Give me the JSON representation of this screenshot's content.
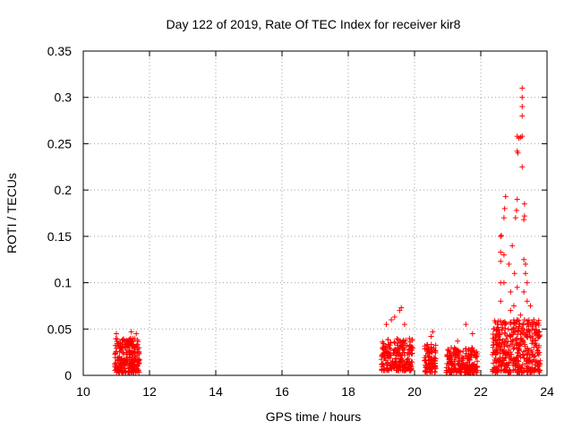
{
  "chart_data": {
    "type": "scatter",
    "title": "Day 122 of 2019, Rate Of TEC Index for receiver kir8",
    "xlabel": "GPS time / hours",
    "ylabel": "ROTI / TECUs",
    "xlim": [
      10,
      24
    ],
    "ylim": [
      0,
      0.35
    ],
    "grid": true,
    "marker": "+",
    "color": "#ff0000",
    "x_tick_labels": [
      "10",
      "12",
      "14",
      "16",
      "18",
      "20",
      "22",
      "24"
    ],
    "y_tick_labels": [
      "0",
      "0.05",
      "0.1",
      "0.15",
      "0.2",
      "0.25",
      "0.3",
      "0.35"
    ],
    "clusters": [
      {
        "x_range": [
          10.95,
          11.7
        ],
        "y_range": [
          0.003,
          0.04
        ],
        "count": 260
      },
      {
        "x_range": [
          19.0,
          19.95
        ],
        "y_range": [
          0.005,
          0.04
        ],
        "count": 230
      },
      {
        "x_range": [
          20.3,
          20.65
        ],
        "y_range": [
          0.003,
          0.035
        ],
        "count": 90
      },
      {
        "x_range": [
          20.95,
          21.9
        ],
        "y_range": [
          0.003,
          0.03
        ],
        "count": 220
      },
      {
        "x_range": [
          22.35,
          23.8
        ],
        "y_range": [
          0.003,
          0.06
        ],
        "count": 420
      }
    ],
    "notable_points": [
      {
        "x": 11.0,
        "y": 0.045
      },
      {
        "x": 11.45,
        "y": 0.047
      },
      {
        "x": 11.6,
        "y": 0.045
      },
      {
        "x": 19.15,
        "y": 0.055
      },
      {
        "x": 19.3,
        "y": 0.06
      },
      {
        "x": 19.4,
        "y": 0.063
      },
      {
        "x": 19.55,
        "y": 0.07
      },
      {
        "x": 19.6,
        "y": 0.073
      },
      {
        "x": 19.7,
        "y": 0.055
      },
      {
        "x": 20.5,
        "y": 0.042
      },
      {
        "x": 20.55,
        "y": 0.047
      },
      {
        "x": 21.3,
        "y": 0.037
      },
      {
        "x": 21.55,
        "y": 0.055
      },
      {
        "x": 21.75,
        "y": 0.045
      },
      {
        "x": 22.5,
        "y": 0.055
      },
      {
        "x": 22.6,
        "y": 0.08
      },
      {
        "x": 22.6,
        "y": 0.1
      },
      {
        "x": 22.6,
        "y": 0.123
      },
      {
        "x": 22.6,
        "y": 0.133
      },
      {
        "x": 22.6,
        "y": 0.15
      },
      {
        "x": 22.62,
        "y": 0.151
      },
      {
        "x": 22.7,
        "y": 0.1
      },
      {
        "x": 22.7,
        "y": 0.13
      },
      {
        "x": 22.7,
        "y": 0.17
      },
      {
        "x": 22.72,
        "y": 0.18
      },
      {
        "x": 22.75,
        "y": 0.193
      },
      {
        "x": 22.85,
        "y": 0.12
      },
      {
        "x": 22.9,
        "y": 0.09
      },
      {
        "x": 22.95,
        "y": 0.14
      },
      {
        "x": 23.0,
        "y": 0.075
      },
      {
        "x": 23.02,
        "y": 0.11
      },
      {
        "x": 23.05,
        "y": 0.17
      },
      {
        "x": 23.08,
        "y": 0.178
      },
      {
        "x": 23.1,
        "y": 0.19
      },
      {
        "x": 23.1,
        "y": 0.242
      },
      {
        "x": 23.12,
        "y": 0.24
      },
      {
        "x": 23.1,
        "y": 0.258
      },
      {
        "x": 23.15,
        "y": 0.256
      },
      {
        "x": 23.2,
        "y": 0.257
      },
      {
        "x": 23.25,
        "y": 0.258
      },
      {
        "x": 23.25,
        "y": 0.225
      },
      {
        "x": 23.25,
        "y": 0.29
      },
      {
        "x": 23.25,
        "y": 0.3
      },
      {
        "x": 23.25,
        "y": 0.31
      },
      {
        "x": 23.25,
        "y": 0.28
      },
      {
        "x": 23.3,
        "y": 0.168
      },
      {
        "x": 23.32,
        "y": 0.172
      },
      {
        "x": 23.32,
        "y": 0.185
      },
      {
        "x": 23.3,
        "y": 0.125
      },
      {
        "x": 23.35,
        "y": 0.12
      },
      {
        "x": 23.35,
        "y": 0.11
      },
      {
        "x": 23.3,
        "y": 0.09
      },
      {
        "x": 23.4,
        "y": 0.1
      },
      {
        "x": 23.4,
        "y": 0.08
      },
      {
        "x": 23.5,
        "y": 0.075
      },
      {
        "x": 23.6,
        "y": 0.06
      },
      {
        "x": 23.65,
        "y": 0.055
      },
      {
        "x": 23.2,
        "y": 0.065
      },
      {
        "x": 22.9,
        "y": 0.07
      },
      {
        "x": 23.1,
        "y": 0.095
      }
    ]
  }
}
